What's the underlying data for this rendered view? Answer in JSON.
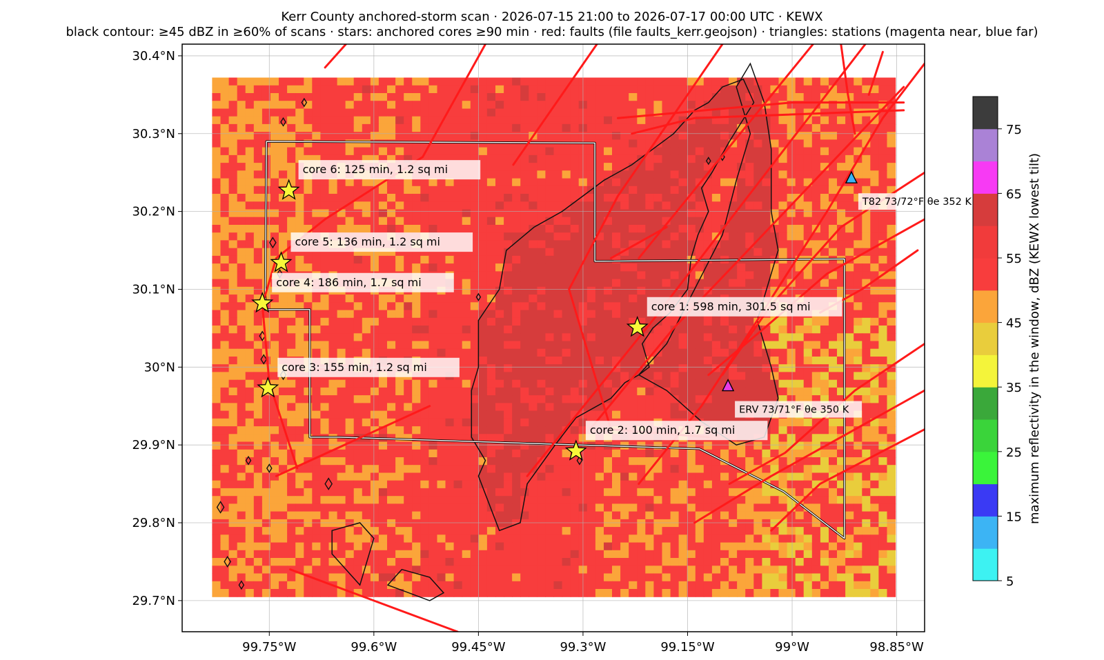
{
  "title_line1": "Kerr County anchored-storm scan · 2026-07-15 21:00 to 2026-07-17 00:00 UTC · KEWX",
  "title_line2": "black contour: ≥45 dBZ in ≥60% of scans · stars: anchored cores ≥90 min · red: faults (file faults_kerr.geojson) · triangles: stations (magenta near, blue far)",
  "axes": {
    "lon_range": [
      -99.875,
      -98.81
    ],
    "lat_range": [
      29.66,
      30.415
    ],
    "x_ticks": [
      {
        "value": -99.75,
        "label": "99.75°W"
      },
      {
        "value": -99.6,
        "label": "99.6°W"
      },
      {
        "value": -99.45,
        "label": "99.45°W"
      },
      {
        "value": -99.3,
        "label": "99.3°W"
      },
      {
        "value": -99.15,
        "label": "99.15°W"
      },
      {
        "value": -99.0,
        "label": "99°W"
      },
      {
        "value": -98.85,
        "label": "98.85°W"
      }
    ],
    "y_ticks": [
      {
        "value": 30.4,
        "label": "30.4°N"
      },
      {
        "value": 30.3,
        "label": "30.3°N"
      },
      {
        "value": 30.2,
        "label": "30.2°N"
      },
      {
        "value": 30.1,
        "label": "30.1°N"
      },
      {
        "value": 30.0,
        "label": "30°N"
      },
      {
        "value": 29.9,
        "label": "29.9°N"
      },
      {
        "value": 29.8,
        "label": "29.8°N"
      },
      {
        "value": 29.7,
        "label": "29.7°N"
      }
    ],
    "grid": true
  },
  "reflectivity_grid": {
    "lon_range": [
      -99.832,
      -98.852
    ],
    "lat_range": [
      29.705,
      30.372
    ],
    "colors": {
      "orange": "#fba53a",
      "red": "#f83d3d",
      "dark_red": "#d63c3c",
      "yellow": "#e9cd3c"
    }
  },
  "colorbar": {
    "label": "maximum reflectivity in the window, dBZ (KEWX lowest tilt)",
    "range": [
      5,
      80
    ],
    "bins": [
      {
        "from": 5,
        "to": 10,
        "color": "#3df2f2"
      },
      {
        "from": 10,
        "to": 15,
        "color": "#3cb4f4"
      },
      {
        "from": 15,
        "to": 20,
        "color": "#3a3af4"
      },
      {
        "from": 20,
        "to": 25,
        "color": "#3af43a"
      },
      {
        "from": 25,
        "to": 30,
        "color": "#3ad43a"
      },
      {
        "from": 30,
        "to": 35,
        "color": "#3aa83a"
      },
      {
        "from": 35,
        "to": 40,
        "color": "#f4f43a"
      },
      {
        "from": 40,
        "to": 45,
        "color": "#e9cd3c"
      },
      {
        "from": 45,
        "to": 50,
        "color": "#fba53a"
      },
      {
        "from": 50,
        "to": 55,
        "color": "#f83d3d"
      },
      {
        "from": 55,
        "to": 60,
        "color": "#f13b3b"
      },
      {
        "from": 60,
        "to": 65,
        "color": "#d63c3c"
      },
      {
        "from": 65,
        "to": 70,
        "color": "#f73af4"
      },
      {
        "from": 70,
        "to": 75,
        "color": "#aa82d6"
      },
      {
        "from": 75,
        "to": 80,
        "color": "#3c3c3c"
      }
    ],
    "ticks": [
      5,
      15,
      25,
      35,
      45,
      55,
      65,
      75
    ]
  },
  "cores": [
    {
      "lon": -99.722,
      "lat": 30.227,
      "label": "core 6: 125 min, 1.2 sq mi"
    },
    {
      "lon": -99.733,
      "lat": 30.134,
      "label": "core 5: 136 min, 1.2 sq mi"
    },
    {
      "lon": -99.76,
      "lat": 30.082,
      "label": "core 4: 186 min, 1.7 sq mi"
    },
    {
      "lon": -99.222,
      "lat": 30.051,
      "label": "core 1: 598 min, 301.5 sq mi"
    },
    {
      "lon": -99.752,
      "lat": 29.973,
      "label": "core 3: 155 min, 1.2 sq mi"
    },
    {
      "lon": -99.31,
      "lat": 29.892,
      "label": "core 2: 100 min, 1.7 sq mi"
    }
  ],
  "stations": [
    {
      "lon": -98.915,
      "lat": 30.242,
      "color": "#3cb4f4",
      "label": "T82 73/72°F θe 352 K"
    },
    {
      "lon": -99.092,
      "lat": 29.975,
      "color": "#e83ce8",
      "label": "ERV 73/71°F θe 350 K"
    }
  ],
  "county_outline": [
    [
      -99.754,
      30.29
    ],
    [
      -99.283,
      30.288
    ],
    [
      -99.283,
      30.136
    ],
    [
      -98.925,
      30.139
    ],
    [
      -98.925,
      29.78
    ],
    [
      -99.012,
      29.84
    ],
    [
      -99.133,
      29.895
    ],
    [
      -99.65,
      29.91
    ],
    [
      -99.692,
      29.91
    ],
    [
      -99.692,
      30.074
    ],
    [
      -99.756,
      30.074
    ],
    [
      -99.754,
      30.29
    ]
  ],
  "faults": [
    [
      [
        -99.67,
        30.385
      ],
      [
        -99.64,
        30.415
      ]
    ],
    [
      [
        -99.44,
        30.415
      ],
      [
        -99.53,
        30.27
      ],
      [
        -99.67,
        30.19
      ],
      [
        -99.74,
        30.14
      ],
      [
        -99.76,
        30.08
      ],
      [
        -99.75,
        29.98
      ],
      [
        -99.71,
        29.87
      ]
    ],
    [
      [
        -99.28,
        30.415
      ],
      [
        -99.4,
        30.26
      ]
    ],
    [
      [
        -99.1,
        30.415
      ],
      [
        -99.25,
        30.22
      ],
      [
        -99.32,
        30.1
      ],
      [
        -99.26,
        29.92
      ],
      [
        -99.12,
        29.91
      ]
    ],
    [
      [
        -98.97,
        30.415
      ],
      [
        -99.22,
        30.14
      ]
    ],
    [
      [
        -98.895,
        30.415
      ],
      [
        -99.08,
        30.2
      ],
      [
        -99.2,
        30.06
      ],
      [
        -99.38,
        29.86
      ]
    ],
    [
      [
        -98.84,
        30.36
      ],
      [
        -99.01,
        30.2
      ],
      [
        -99.17,
        30.05
      ],
      [
        -99.29,
        29.92
      ]
    ],
    [
      [
        -98.81,
        30.39
      ],
      [
        -98.87,
        30.32
      ],
      [
        -98.95,
        30.2
      ],
      [
        -99.05,
        30.06
      ],
      [
        -99.13,
        29.95
      ],
      [
        -99.22,
        29.85
      ]
    ],
    [
      [
        -98.81,
        30.25
      ],
      [
        -98.93,
        30.18
      ],
      [
        -99.03,
        30.08
      ],
      [
        -99.1,
        29.99
      ]
    ],
    [
      [
        -98.81,
        30.19
      ],
      [
        -98.95,
        30.12
      ],
      [
        -99.04,
        30.05
      ],
      [
        -99.12,
        29.99
      ]
    ],
    [
      [
        -98.81,
        30.03
      ],
      [
        -98.91,
        29.97
      ],
      [
        -99.01,
        29.89
      ],
      [
        -99.09,
        29.85
      ]
    ],
    [
      [
        -98.81,
        29.97
      ],
      [
        -98.93,
        29.91
      ],
      [
        -99.03,
        29.86
      ],
      [
        -99.14,
        29.8
      ]
    ],
    [
      [
        -98.81,
        29.92
      ],
      [
        -98.96,
        29.85
      ],
      [
        -99.03,
        29.79
      ]
    ],
    [
      [
        -99.18,
        30.18
      ],
      [
        -99.26,
        30.14
      ]
    ],
    [
      [
        -98.93,
        30.415
      ],
      [
        -98.92,
        30.35
      ],
      [
        -98.91,
        30.3
      ]
    ],
    [
      [
        -98.87,
        30.405
      ],
      [
        -98.89,
        30.35
      ]
    ],
    [
      [
        -98.82,
        30.15
      ],
      [
        -98.9,
        30.1
      ],
      [
        -98.96,
        30.07
      ]
    ],
    [
      [
        -99.52,
        29.95
      ],
      [
        -99.74,
        29.86
      ]
    ],
    [
      [
        -99.48,
        29.66
      ],
      [
        -99.6,
        29.7
      ],
      [
        -99.72,
        29.74
      ]
    ],
    [
      [
        -99.25,
        30.32
      ],
      [
        -99.0,
        30.34
      ],
      [
        -98.84,
        30.34
      ]
    ],
    [
      [
        -98.84,
        30.33
      ],
      [
        -99.14,
        30.32
      ],
      [
        -99.23,
        30.3
      ]
    ]
  ],
  "contours": {
    "main": [
      [
        -99.055,
        30.34
      ],
      [
        -99.09,
        30.29
      ],
      [
        -99.115,
        30.25
      ],
      [
        -99.13,
        30.23
      ],
      [
        -99.12,
        30.2
      ],
      [
        -99.135,
        30.17
      ],
      [
        -99.145,
        30.14
      ],
      [
        -99.15,
        30.1
      ],
      [
        -99.175,
        30.07
      ],
      [
        -99.2,
        30.05
      ],
      [
        -99.215,
        30.03
      ],
      [
        -99.205,
        30.0
      ],
      [
        -99.22,
        29.99
      ],
      [
        -99.24,
        29.98
      ],
      [
        -99.26,
        29.96
      ],
      [
        -99.31,
        29.935
      ],
      [
        -99.34,
        29.9
      ],
      [
        -99.38,
        29.85
      ],
      [
        -99.39,
        29.8
      ],
      [
        -99.42,
        29.79
      ],
      [
        -99.45,
        29.86
      ],
      [
        -99.44,
        29.88
      ],
      [
        -99.46,
        29.91
      ],
      [
        -99.46,
        29.97
      ],
      [
        -99.45,
        30.0
      ],
      [
        -99.45,
        30.06
      ],
      [
        -99.42,
        30.1
      ],
      [
        -99.41,
        30.15
      ],
      [
        -99.37,
        30.18
      ],
      [
        -99.33,
        30.2
      ],
      [
        -99.3,
        30.22
      ],
      [
        -99.27,
        30.24
      ],
      [
        -99.23,
        30.26
      ],
      [
        -99.2,
        30.28
      ],
      [
        -99.17,
        30.3
      ],
      [
        -99.14,
        30.33
      ],
      [
        -99.12,
        30.34
      ],
      [
        -99.1,
        30.36
      ],
      [
        -99.07,
        30.37
      ],
      [
        -99.055,
        30.34
      ]
    ],
    "east": [
      [
        -99.06,
        30.39
      ],
      [
        -99.04,
        30.34
      ],
      [
        -99.03,
        30.28
      ],
      [
        -99.03,
        30.2
      ],
      [
        -99.02,
        30.15
      ],
      [
        -99.05,
        30.06
      ],
      [
        -99.03,
        30.0
      ],
      [
        -99.02,
        29.96
      ],
      [
        -99.04,
        29.91
      ],
      [
        -99.08,
        29.9
      ],
      [
        -99.13,
        29.93
      ],
      [
        -99.18,
        29.97
      ],
      [
        -99.22,
        29.99
      ],
      [
        -99.18,
        30.03
      ],
      [
        -99.14,
        30.1
      ],
      [
        -99.1,
        30.17
      ],
      [
        -99.08,
        30.24
      ],
      [
        -99.06,
        30.3
      ],
      [
        -99.08,
        30.36
      ],
      [
        -99.06,
        30.39
      ]
    ],
    "southwest": [
      [
        -99.62,
        29.72
      ],
      [
        -99.6,
        29.78
      ],
      [
        -99.62,
        29.8
      ],
      [
        -99.66,
        29.79
      ],
      [
        -99.66,
        29.76
      ],
      [
        -99.63,
        29.73
      ],
      [
        -99.62,
        29.72
      ]
    ],
    "south": [
      [
        -99.52,
        29.7
      ],
      [
        -99.55,
        29.71
      ],
      [
        -99.58,
        29.72
      ],
      [
        -99.56,
        29.74
      ],
      [
        -99.52,
        29.73
      ],
      [
        -99.5,
        29.71
      ],
      [
        -99.52,
        29.7
      ]
    ],
    "blobs": [
      {
        "lon": -99.745,
        "lat": 30.16,
        "r": 4.5
      },
      {
        "lon": -99.735,
        "lat": 30.12,
        "r": 3.5
      },
      {
        "lon": -99.76,
        "lat": 30.04,
        "r": 4
      },
      {
        "lon": -99.758,
        "lat": 30.01,
        "r": 4
      },
      {
        "lon": -99.73,
        "lat": 29.99,
        "r": 4
      },
      {
        "lon": -99.75,
        "lat": 29.87,
        "r": 3.5
      },
      {
        "lon": -99.665,
        "lat": 29.85,
        "r": 5
      },
      {
        "lon": -99.82,
        "lat": 29.82,
        "r": 5
      },
      {
        "lon": -99.81,
        "lat": 29.75,
        "r": 4.5
      },
      {
        "lon": -99.79,
        "lat": 29.72,
        "r": 3.5
      },
      {
        "lon": -99.45,
        "lat": 30.09,
        "r": 3
      },
      {
        "lon": -99.12,
        "lat": 30.265,
        "r": 3
      },
      {
        "lon": -99.1,
        "lat": 30.27,
        "r": 3
      },
      {
        "lon": -99.305,
        "lat": 29.88,
        "r": 3.5
      },
      {
        "lon": -99.73,
        "lat": 30.315,
        "r": 3.5
      },
      {
        "lon": -99.7,
        "lat": 30.34,
        "r": 3.5
      },
      {
        "lon": -99.78,
        "lat": 29.88,
        "r": 3.5
      }
    ]
  }
}
